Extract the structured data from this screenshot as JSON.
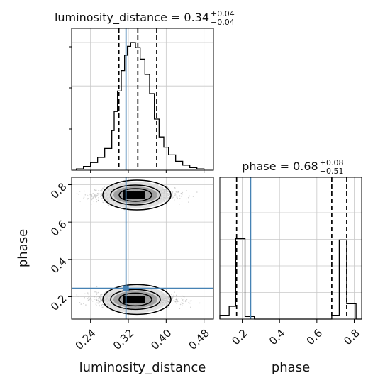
{
  "chart_data": {
    "type": "corner",
    "colors": {
      "hist": "#000000",
      "truth": "#4682b4",
      "grid": "#c8c8c8",
      "scatter": "#a0a0a0",
      "density": "#000000"
    },
    "grid": true,
    "parameters": [
      "luminosity_distance",
      "phase"
    ],
    "truth": {
      "luminosity_distance": 0.315,
      "phase": 0.245
    },
    "panels": [
      {
        "id": "luminosity_distance-hist",
        "kind": "histogram",
        "parameter": "luminosity_distance",
        "title_main": "luminosity_distance = 0.34",
        "title_sup": "+0.04",
        "title_sub": "−0.04",
        "xlim": [
          0.2,
          0.5
        ],
        "quantiles": [
          0.3,
          0.34,
          0.38
        ],
        "bin_edges": [
          0.21,
          0.225,
          0.24,
          0.255,
          0.27,
          0.285,
          0.29,
          0.297,
          0.305,
          0.312,
          0.318,
          0.325,
          0.335,
          0.345,
          0.355,
          0.365,
          0.375,
          0.385,
          0.395,
          0.405,
          0.42,
          0.435,
          0.45,
          0.465,
          0.48
        ],
        "counts": [
          0.01,
          0.03,
          0.06,
          0.1,
          0.17,
          0.31,
          0.46,
          0.62,
          0.78,
          0.9,
          0.97,
          1.0,
          0.96,
          0.87,
          0.75,
          0.6,
          0.4,
          0.26,
          0.18,
          0.12,
          0.07,
          0.04,
          0.02,
          0.01
        ]
      },
      {
        "id": "phase-hist",
        "kind": "histogram",
        "parameter": "phase",
        "title_main": "phase = 0.68",
        "title_sup": "+0.08",
        "title_sub": "−0.51",
        "xlim": [
          0.08,
          0.84
        ],
        "quantiles": [
          0.17,
          0.68,
          0.76
        ],
        "bin_edges": [
          0.08,
          0.13,
          0.165,
          0.215,
          0.265,
          0.3,
          0.68,
          0.72,
          0.76,
          0.81,
          0.84
        ],
        "counts": [
          0.03,
          0.1,
          0.63,
          0.02,
          0.0,
          0.0,
          0.03,
          0.62,
          0.12,
          0.0
        ]
      },
      {
        "id": "phase-vs-luminosity_distance",
        "kind": "density2d",
        "x_parameter": "luminosity_distance",
        "y_parameter": "phase",
        "xlim": [
          0.2,
          0.5
        ],
        "ylim": [
          0.08,
          0.84
        ],
        "clusters": [
          {
            "center": [
              0.335,
              0.745
            ],
            "spread": [
              0.055,
              0.035
            ]
          },
          {
            "center": [
              0.335,
              0.185
            ],
            "spread": [
              0.055,
              0.035
            ]
          }
        ]
      }
    ],
    "axes": {
      "luminosity_distance": {
        "label": "luminosity_distance",
        "ticks": [
          0.24,
          0.32,
          0.4,
          0.48
        ],
        "tick_labels": [
          "0.24",
          "0.32",
          "0.40",
          "0.48"
        ]
      },
      "phase_y": {
        "label": "phase",
        "ticks": [
          0.2,
          0.4,
          0.6,
          0.8
        ],
        "tick_labels": [
          "0.2",
          "0.4",
          "0.6",
          "0.8"
        ]
      },
      "phase_x": {
        "label": "phase",
        "ticks": [
          0.2,
          0.4,
          0.6,
          0.8
        ],
        "tick_labels": [
          "0.2",
          "0.4",
          "0.6",
          "0.8"
        ]
      }
    }
  }
}
